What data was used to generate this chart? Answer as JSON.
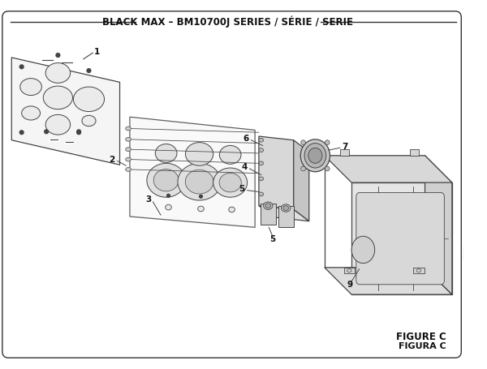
{
  "title": "BLACK MAX – BM10700J SERIES / SÉRIE / SERIE",
  "figure_label": "FIGURE C",
  "figura_label": "FIGURA C",
  "bg_color": "#ffffff",
  "border_color": "#333333",
  "line_color": "#444444",
  "text_color": "#111111",
  "title_fontsize": 8.5,
  "figure_label_fontsize": 8.5
}
